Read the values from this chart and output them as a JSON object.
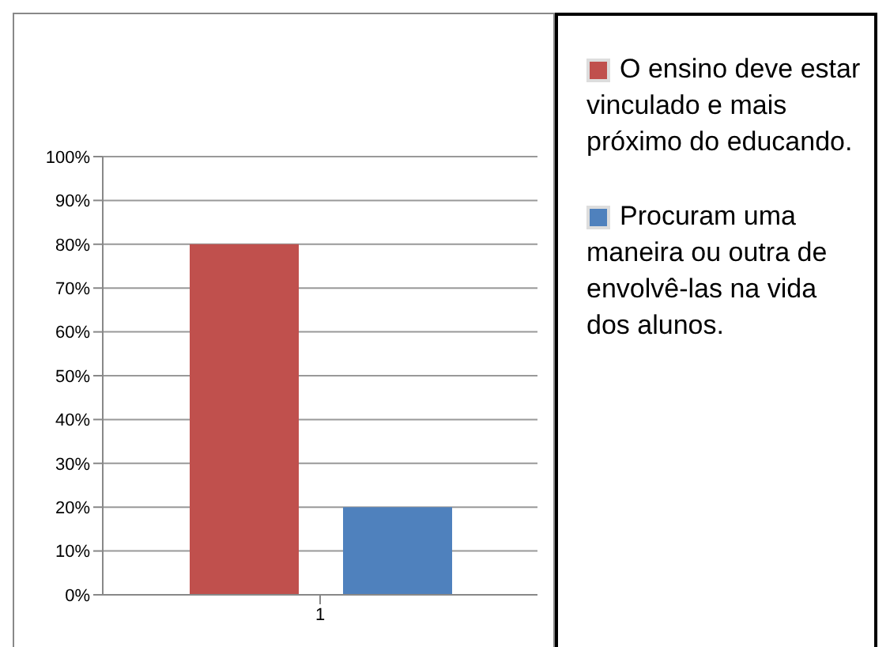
{
  "chart_data": {
    "type": "bar",
    "categories": [
      "1"
    ],
    "series": [
      {
        "name": "O ensino deve estar vinculado e mais próximo do educando.",
        "color": "#c0504d",
        "values": [
          80
        ]
      },
      {
        "name": "Procuram uma maneira ou outra de envolvê-las na vida dos alunos.",
        "color": "#4f81bd",
        "values": [
          20
        ]
      }
    ],
    "ylim": [
      0,
      100
    ],
    "yticks": [
      {
        "value": 0,
        "label": "0%"
      },
      {
        "value": 10,
        "label": "10%"
      },
      {
        "value": 20,
        "label": "20%"
      },
      {
        "value": 30,
        "label": "30%"
      },
      {
        "value": 40,
        "label": "40%"
      },
      {
        "value": 50,
        "label": "50%"
      },
      {
        "value": 60,
        "label": "60%"
      },
      {
        "value": 70,
        "label": "70%"
      },
      {
        "value": 80,
        "label": "80%"
      },
      {
        "value": 90,
        "label": "90%"
      },
      {
        "value": 100,
        "label": "100%"
      }
    ],
    "grid": "y",
    "legend": "right"
  }
}
